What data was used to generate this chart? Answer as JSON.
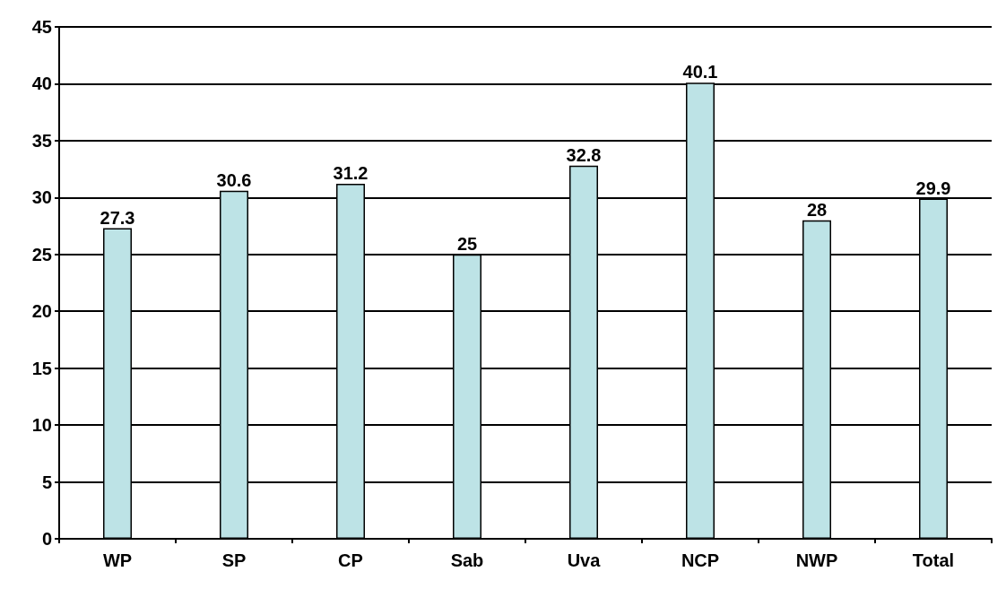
{
  "chart_data": {
    "type": "bar",
    "categories": [
      "WP",
      "SP",
      "CP",
      "Sab",
      "Uva",
      "NCP",
      "NWP",
      "Total"
    ],
    "values": [
      27.3,
      30.6,
      31.2,
      25,
      32.8,
      40.1,
      28,
      29.9
    ],
    "color": "#bde3e6",
    "ylim": [
      0,
      45
    ],
    "yticks": [
      0,
      5,
      10,
      15,
      20,
      25,
      30,
      35,
      40,
      45
    ],
    "grid": "y",
    "data_labels": true
  }
}
